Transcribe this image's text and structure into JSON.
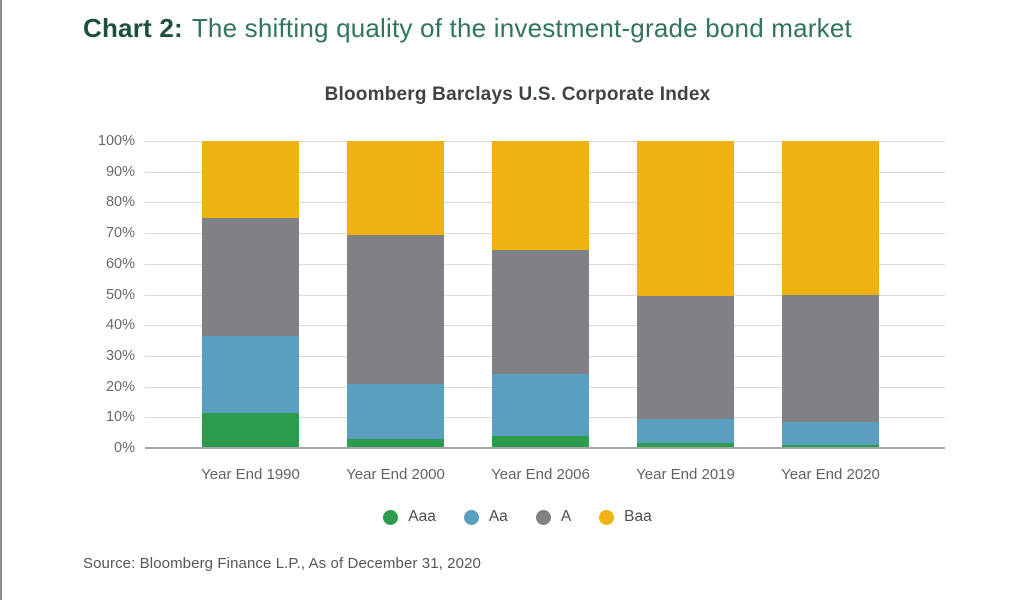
{
  "header": {
    "title_prefix": "Chart 2:",
    "title_rest": "The shifting quality of the investment-grade bond market"
  },
  "footer": {
    "source": "Source: Bloomberg Finance L.P., As of December 31, 2020"
  },
  "colors": {
    "title_prefix": "#1d4f3b",
    "title_rest": "#31755a",
    "subtitle_text": "#3f4347",
    "axis_text": "#66696d",
    "gridline": "#dadada",
    "baseline": "#a5a5a5",
    "aaa_green": "#2b9c4e",
    "aa_blue": "#5a9fc0",
    "a_gray": "#808184",
    "baa_yellow": "#eeb211"
  },
  "chart_data": {
    "type": "bar",
    "stacked": true,
    "title": "Bloomberg Barclays U.S. Corporate Index",
    "categories": [
      "Year End 1990",
      "Year End 2000",
      "Year End 2006",
      "Year End 2019",
      "Year End 2020"
    ],
    "series": [
      {
        "name": "Aaa",
        "color": "#2b9c4e",
        "values": [
          11.5,
          3,
          4,
          1.5,
          1
        ]
      },
      {
        "name": "Aa",
        "color": "#5a9fc0",
        "values": [
          25,
          18,
          20,
          8,
          7.5
        ]
      },
      {
        "name": "A",
        "color": "#808184",
        "values": [
          38.5,
          48.5,
          40.5,
          40,
          41.5
        ]
      },
      {
        "name": "Baa",
        "color": "#eeb211",
        "values": [
          25,
          30.5,
          35.5,
          50.5,
          50
        ]
      }
    ],
    "xlabel": "",
    "ylabel": "",
    "ylim": [
      0,
      100
    ],
    "ytick_step": 10,
    "ytick_suffix": "%",
    "grid": true,
    "legend_position": "bottom"
  }
}
